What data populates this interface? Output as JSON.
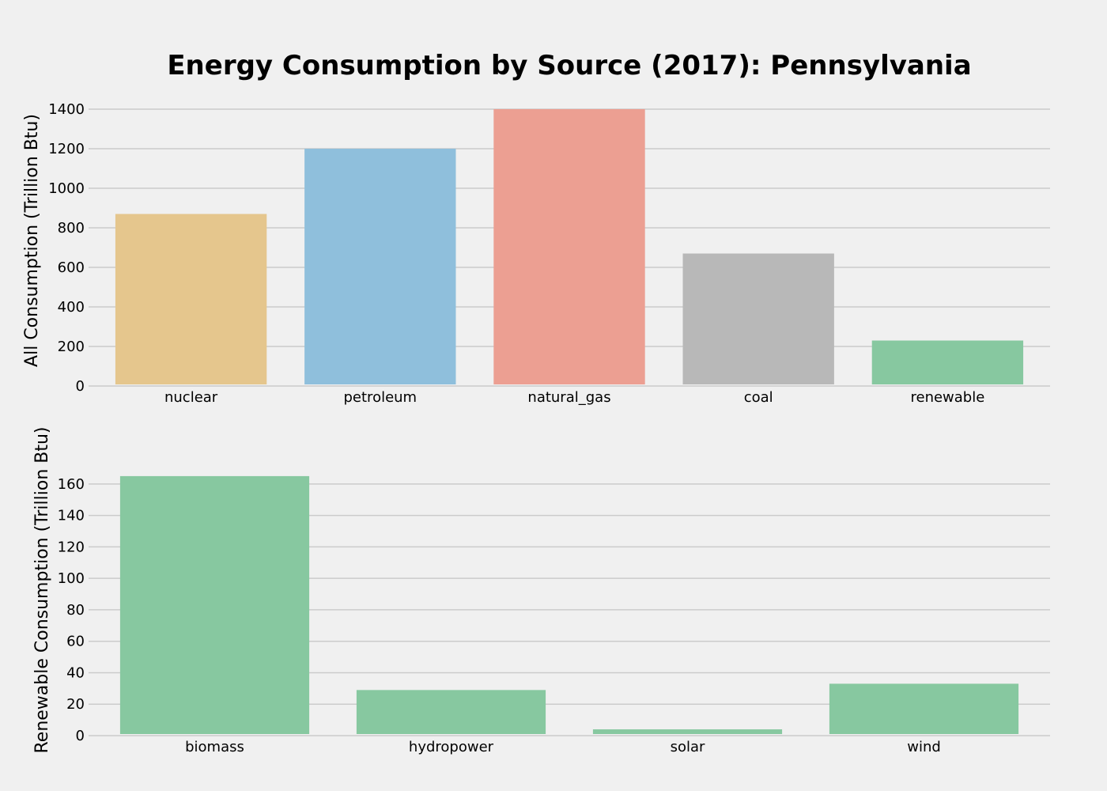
{
  "chart_data": [
    {
      "type": "bar",
      "title": "Energy Consumption by Source (2017): Pennsylvania",
      "ylabel": "All Consumption (Trillion Btu)",
      "xlabel": "",
      "categories": [
        "nuclear",
        "petroleum",
        "natural_gas",
        "coal",
        "renewable"
      ],
      "values": [
        870,
        1200,
        1405,
        670,
        230
      ],
      "colors": [
        "#e5c68d",
        "#8fbfdc",
        "#ec9f92",
        "#b8b8b8",
        "#87c8a0"
      ],
      "ylim": [
        0,
        1400
      ],
      "yticks": [
        0,
        200,
        400,
        600,
        800,
        1000,
        1200,
        1400
      ],
      "grid": "y"
    },
    {
      "type": "bar",
      "title": "",
      "ylabel": "Renewable Consumption (Trillion Btu)",
      "xlabel": "",
      "categories": [
        "biomass",
        "hydropower",
        "solar",
        "wind"
      ],
      "values": [
        165,
        29,
        4,
        33
      ],
      "colors": [
        "#87c8a0",
        "#87c8a0",
        "#87c8a0",
        "#87c8a0"
      ],
      "ylim": [
        0,
        170
      ],
      "yticks": [
        0,
        20,
        40,
        60,
        80,
        100,
        120,
        140,
        160
      ],
      "grid": "y"
    }
  ]
}
